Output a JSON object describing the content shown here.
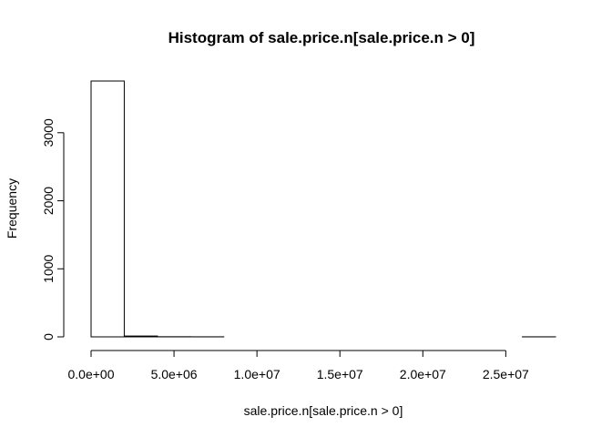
{
  "chart_data": {
    "type": "bar",
    "title": "Histogram of sale.price.n[sale.price.n > 0]",
    "xlabel": "sale.price.n[sale.price.n > 0]",
    "ylabel": "Frequency",
    "bins": [
      {
        "x0": 0,
        "x1": 2000000,
        "count": 3760
      },
      {
        "x0": 2000000,
        "x1": 4000000,
        "count": 12
      },
      {
        "x0": 4000000,
        "x1": 6000000,
        "count": 2
      },
      {
        "x0": 6000000,
        "x1": 8000000,
        "count": 1
      },
      {
        "x0": 8000000,
        "x1": 10000000,
        "count": 0
      },
      {
        "x0": 10000000,
        "x1": 12000000,
        "count": 0
      },
      {
        "x0": 12000000,
        "x1": 14000000,
        "count": 0
      },
      {
        "x0": 14000000,
        "x1": 16000000,
        "count": 0
      },
      {
        "x0": 16000000,
        "x1": 18000000,
        "count": 0
      },
      {
        "x0": 18000000,
        "x1": 20000000,
        "count": 0
      },
      {
        "x0": 20000000,
        "x1": 22000000,
        "count": 0
      },
      {
        "x0": 22000000,
        "x1": 24000000,
        "count": 0
      },
      {
        "x0": 24000000,
        "x1": 26000000,
        "count": 0
      },
      {
        "x0": 26000000,
        "x1": 28000000,
        "count": 1
      }
    ],
    "x_ticks": [
      {
        "value": 0,
        "label": "0.0e+00"
      },
      {
        "value": 5000000,
        "label": "5.0e+06"
      },
      {
        "value": 10000000,
        "label": "1.0e+07"
      },
      {
        "value": 15000000,
        "label": "1.5e+07"
      },
      {
        "value": 20000000,
        "label": "2.0e+07"
      },
      {
        "value": 25000000,
        "label": "2.5e+07"
      }
    ],
    "y_ticks": [
      {
        "value": 0,
        "label": "0"
      },
      {
        "value": 1000,
        "label": "1000"
      },
      {
        "value": 2000,
        "label": "2000"
      },
      {
        "value": 3000,
        "label": "3000"
      }
    ],
    "xlim": [
      0,
      28000000
    ],
    "ylim": [
      0,
      3760
    ],
    "grid": false,
    "bar_fill": "#ffffff",
    "bar_stroke": "#000000"
  }
}
